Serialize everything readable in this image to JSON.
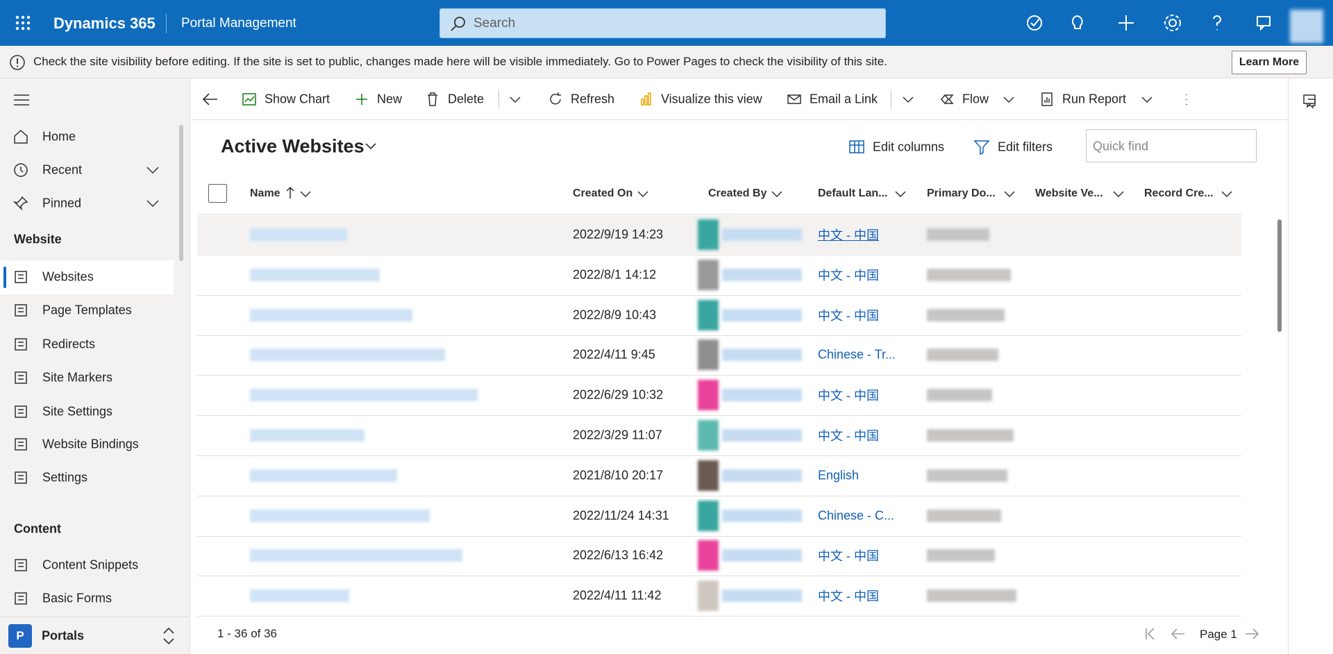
{
  "header": {
    "app": "Dynamics 365",
    "area": "Portal Management",
    "search_placeholder": "Search"
  },
  "notice": {
    "text": "Check the site visibility before editing. If the site is set to public, changes made here will be visible immediately. Go to Power Pages to check the visibility of this site.",
    "button": "Learn More"
  },
  "sidebar": {
    "top": [
      "Home",
      "Recent",
      "Pinned"
    ],
    "sections": [
      {
        "title": "Website",
        "items": [
          "Websites",
          "Page Templates",
          "Redirects",
          "Site Markers",
          "Site Settings",
          "Website Bindings",
          "Settings"
        ]
      },
      {
        "title": "Content",
        "items": [
          "Content Snippets",
          "Basic Forms"
        ]
      }
    ],
    "app_badge": "P",
    "app_name": "Portals"
  },
  "commands": [
    "Show Chart",
    "New",
    "Delete",
    "Refresh",
    "Visualize this view",
    "Email a Link",
    "Flow",
    "Run Report"
  ],
  "view": {
    "title": "Active Websites",
    "edit_columns": "Edit columns",
    "edit_filters": "Edit filters",
    "quick_find_placeholder": "Quick find"
  },
  "table": {
    "columns": [
      "Name",
      "Created On",
      "Created By",
      "Default Lan...",
      "Primary Do...",
      "Website Ve...",
      "Record Cre..."
    ],
    "rows": [
      {
        "created_on": "2022/9/19 14:23",
        "language": "中文 - 中国"
      },
      {
        "created_on": "2022/8/1 14:12",
        "language": "中文 - 中国"
      },
      {
        "created_on": "2022/8/9 10:43",
        "language": "中文 - 中国"
      },
      {
        "created_on": "2022/4/11 9:45",
        "language": "Chinese - Tr..."
      },
      {
        "created_on": "2022/6/29 10:32",
        "language": "中文 - 中国"
      },
      {
        "created_on": "2022/3/29 11:07",
        "language": "中文 - 中国"
      },
      {
        "created_on": "2021/8/10 20:17",
        "language": "English"
      },
      {
        "created_on": "2022/11/24 14:31",
        "language": "Chinese - C..."
      },
      {
        "created_on": "2022/6/13 16:42",
        "language": "中文 - 中国"
      },
      {
        "created_on": "2022/4/11 11:42",
        "language": "中文 - 中国"
      }
    ]
  },
  "footer": {
    "count": "1 - 36 of 36",
    "page": "Page 1"
  }
}
